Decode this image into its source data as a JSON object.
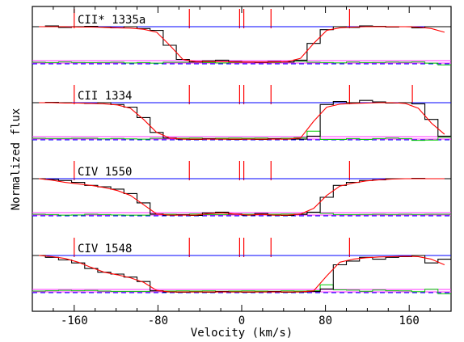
{
  "chart_data": {
    "type": "line",
    "xlabel": "Velocity (km/s)",
    "ylabel": "Normalized flux",
    "xlim": [
      -200,
      200
    ],
    "x_ticks": [
      -160,
      -80,
      0,
      80,
      160
    ],
    "x_tick_labels": [
      "-160",
      "-80",
      "0",
      "80",
      "160"
    ],
    "component_velocities": [
      -160,
      -50,
      -2,
      2,
      28,
      103,
      163
    ],
    "colors": {
      "data": "#000000",
      "model": "#ff0000",
      "residual": "#00cc00",
      "continuum": "#0000ff",
      "error_band": "#ff33ff",
      "component_marker": "#ff0000"
    },
    "panels": [
      {
        "label": "CII* 1335a",
        "trough_from": -80,
        "trough_to": 20,
        "trough_depth": 0.95,
        "marker_velocities": [
          -160,
          -50,
          -2,
          2,
          28,
          103
        ],
        "data_flux": [
          1.0,
          1.02,
          0.98,
          1.0,
          1.01,
          0.99,
          0.97,
          1.0,
          0.95,
          0.9,
          0.5,
          0.12,
          0.05,
          0.08,
          0.1,
          0.06,
          0.05,
          0.04,
          0.06,
          0.05,
          0.1,
          0.55,
          0.92,
          1.0,
          0.98,
          1.02,
          1.01,
          0.99,
          1.0,
          0.97,
          1.0,
          1.0
        ],
        "model_flux": [
          1.0,
          1.0,
          1.0,
          0.99,
          0.99,
          0.98,
          0.97,
          0.96,
          0.93,
          0.85,
          0.5,
          0.12,
          0.06,
          0.06,
          0.06,
          0.05,
          0.05,
          0.05,
          0.05,
          0.06,
          0.15,
          0.55,
          0.9,
          0.97,
          0.99,
          1.0,
          1.0,
          1.0,
          1.0,
          0.99,
          0.95,
          0.85
        ]
      },
      {
        "label": "CII 1334",
        "trough_from": -100,
        "trough_to": 25,
        "trough_depth": 0.98,
        "marker_velocities": [
          -160,
          -50,
          -2,
          2,
          28,
          103,
          163
        ],
        "data_flux": [
          1.0,
          1.01,
          1.0,
          0.99,
          0.98,
          1.0,
          0.95,
          0.88,
          0.6,
          0.2,
          0.05,
          0.02,
          0.01,
          0.03,
          0.02,
          0.01,
          0.02,
          0.01,
          0.03,
          0.02,
          0.02,
          0.1,
          0.95,
          1.03,
          1.0,
          1.06,
          1.02,
          0.99,
          1.0,
          0.97,
          0.55,
          0.1
        ],
        "model_flux": [
          1.0,
          1.0,
          0.99,
          0.99,
          0.98,
          0.97,
          0.94,
          0.85,
          0.55,
          0.2,
          0.05,
          0.02,
          0.02,
          0.02,
          0.02,
          0.02,
          0.02,
          0.02,
          0.02,
          0.02,
          0.05,
          0.5,
          0.88,
          0.96,
          0.98,
          0.99,
          1.0,
          1.0,
          0.98,
          0.85,
          0.45,
          0.15
        ]
      },
      {
        "label": "CIV 1550",
        "trough_from": -140,
        "trough_to": 40,
        "trough_depth": 0.98,
        "marker_velocities": [
          -160,
          -50,
          -2,
          2,
          28,
          103
        ],
        "data_flux": [
          1.0,
          0.98,
          0.95,
          0.9,
          0.82,
          0.78,
          0.72,
          0.6,
          0.35,
          0.05,
          0.02,
          0.03,
          0.01,
          0.08,
          0.1,
          0.05,
          0.02,
          0.06,
          0.02,
          0.01,
          0.04,
          0.1,
          0.5,
          0.82,
          0.9,
          0.95,
          0.97,
          1.0,
          1.0,
          1.01,
          1.0,
          1.0
        ],
        "model_flux": [
          1.0,
          0.96,
          0.9,
          0.86,
          0.82,
          0.76,
          0.68,
          0.55,
          0.3,
          0.05,
          0.02,
          0.02,
          0.02,
          0.06,
          0.08,
          0.05,
          0.02,
          0.04,
          0.02,
          0.02,
          0.05,
          0.2,
          0.55,
          0.8,
          0.88,
          0.94,
          0.97,
          0.99,
          1.0,
          1.0,
          1.0,
          1.0
        ]
      },
      {
        "label": "CIV 1548",
        "trough_from": -150,
        "trough_to": 50,
        "trough_depth": 0.98,
        "marker_velocities": [
          -160,
          -50,
          -2,
          2,
          28,
          103
        ],
        "data_flux": [
          1.0,
          0.95,
          0.88,
          0.8,
          0.65,
          0.55,
          0.5,
          0.42,
          0.3,
          0.05,
          0.02,
          0.01,
          0.02,
          0.01,
          0.03,
          0.02,
          0.01,
          0.02,
          0.03,
          0.01,
          0.02,
          0.03,
          0.1,
          0.75,
          0.85,
          0.95,
          0.9,
          0.95,
          0.97,
          1.0,
          0.8,
          0.9
        ],
        "model_flux": [
          1.0,
          0.97,
          0.92,
          0.82,
          0.68,
          0.55,
          0.48,
          0.4,
          0.28,
          0.06,
          0.02,
          0.02,
          0.02,
          0.02,
          0.02,
          0.02,
          0.02,
          0.02,
          0.02,
          0.02,
          0.02,
          0.05,
          0.45,
          0.82,
          0.9,
          0.94,
          0.96,
          0.97,
          0.98,
          0.97,
          0.9,
          0.75
        ]
      }
    ]
  }
}
